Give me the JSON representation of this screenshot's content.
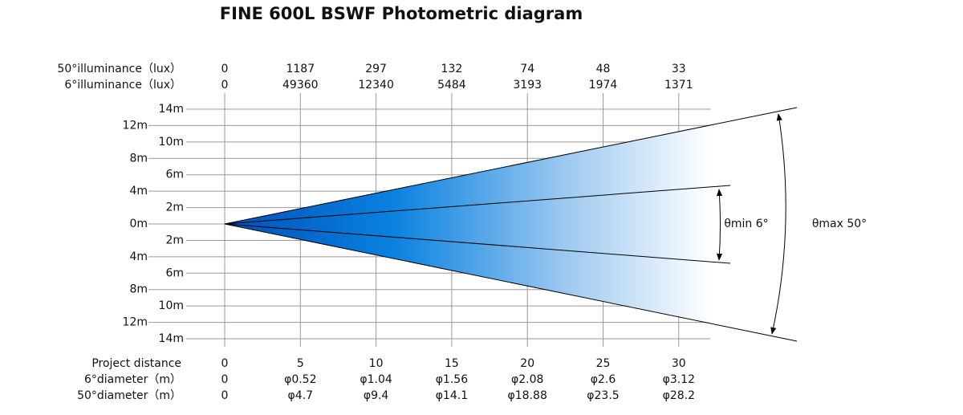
{
  "title": "FINE 600L BSWF   Photometric diagram",
  "header_rows": [
    {
      "label": "50°illuminance（lux）",
      "values": [
        "0",
        "1187",
        "297",
        "132",
        "74",
        "48",
        "33"
      ]
    },
    {
      "label": "6°illuminance（lux）",
      "values": [
        "0",
        "49360",
        "12340",
        "5484",
        "3193",
        "1974",
        "1371"
      ]
    }
  ],
  "y_labels": [
    "14m",
    "12m",
    "10m",
    "8m",
    "6m",
    "4m",
    "2m",
    "0m",
    "2m",
    "4m",
    "6m",
    "8m",
    "10m",
    "12m",
    "14m"
  ],
  "footer_rows": [
    {
      "label": "Project distance",
      "values": [
        "0",
        "5",
        "10",
        "15",
        "20",
        "25",
        "30"
      ]
    },
    {
      "label": "6°diameter（m）",
      "values": [
        "0",
        "φ0.52",
        "φ1.04",
        "φ1.56",
        "φ2.08",
        "φ2.6",
        "φ3.12"
      ]
    },
    {
      "label": "50°diameter（m）",
      "values": [
        "0",
        "φ4.7",
        "φ9.4",
        "φ14.1",
        "φ18.88",
        "φ23.5",
        "φ28.2"
      ]
    }
  ],
  "angles": {
    "min": "θmin 6°",
    "max": "θmax 50°"
  }
}
